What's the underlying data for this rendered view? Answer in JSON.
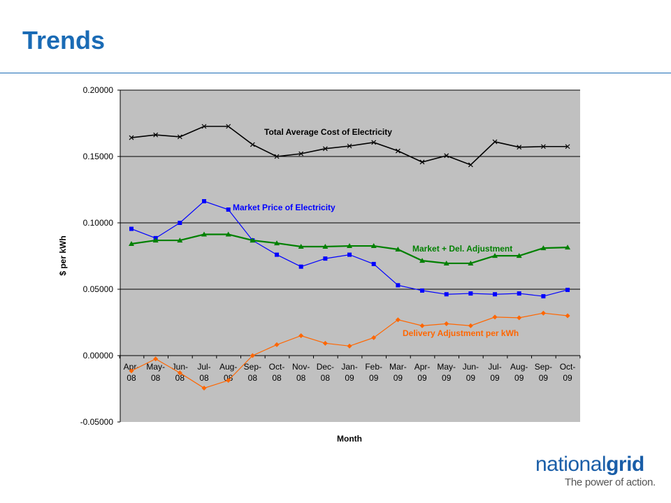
{
  "slide": {
    "title": "Trends"
  },
  "logo": {
    "name_regular": "national",
    "name_bold": "grid",
    "tagline": "The power of action."
  },
  "chart_data": {
    "type": "line",
    "xlabel": "Month",
    "ylabel": "$ per kWh",
    "ylim": [
      -0.05,
      0.2
    ],
    "yticks": [
      "0.20000",
      "0.15000",
      "0.10000",
      "0.05000",
      "0.00000",
      "-0.05000"
    ],
    "ytick_values": [
      0.2,
      0.15,
      0.1,
      0.05,
      0.0,
      -0.05
    ],
    "grid": true,
    "plot_background": "#c0c0c0",
    "categories": [
      "Apr-08",
      "May-08",
      "Jun-08",
      "Jul-08",
      "Aug-08",
      "Sep-08",
      "Oct-08",
      "Nov-08",
      "Dec-08",
      "Jan-09",
      "Feb-09",
      "Mar-09",
      "Apr-09",
      "May-09",
      "Jun-09",
      "Jul-09",
      "Aug-09",
      "Sep-09",
      "Oct-09"
    ],
    "category_labels": [
      [
        "Apr-",
        "08"
      ],
      [
        "May-",
        "08"
      ],
      [
        "Jun-",
        "08"
      ],
      [
        "Jul-",
        "08"
      ],
      [
        "Aug-",
        "08"
      ],
      [
        "Sep-",
        "08"
      ],
      [
        "Oct-",
        "08"
      ],
      [
        "Nov-",
        "08"
      ],
      [
        "Dec-",
        "08"
      ],
      [
        "Jan-",
        "09"
      ],
      [
        "Feb-",
        "09"
      ],
      [
        "Mar-",
        "09"
      ],
      [
        "Apr-",
        "09"
      ],
      [
        "May-",
        "09"
      ],
      [
        "Jun-",
        "09"
      ],
      [
        "Jul-",
        "09"
      ],
      [
        "Aug-",
        "09"
      ],
      [
        "Sep-",
        "09"
      ],
      [
        "Oct-",
        "09"
      ]
    ],
    "series": [
      {
        "name": "Total Average Cost of Electricity",
        "color": "#000000",
        "marker": "x",
        "values": [
          0.1642,
          0.1663,
          0.1648,
          0.1727,
          0.1727,
          0.159,
          0.15,
          0.1521,
          0.1559,
          0.1579,
          0.1606,
          0.1542,
          0.1458,
          0.1506,
          0.1437,
          0.1611,
          0.157,
          0.1575,
          0.1575
        ]
      },
      {
        "name": "Market Price of Electricity",
        "color": "#0000ff",
        "marker": "square",
        "values": [
          0.0955,
          0.0885,
          0.1,
          0.1163,
          0.11,
          0.0868,
          0.076,
          0.067,
          0.0731,
          0.076,
          0.069,
          0.053,
          0.049,
          0.0462,
          0.0468,
          0.0462,
          0.0468,
          0.0447,
          0.0495
        ]
      },
      {
        "name": "Market + Del. Adjustment",
        "color": "#008000",
        "marker": "triangle",
        "values": [
          0.0842,
          0.0868,
          0.0868,
          0.0913,
          0.0913,
          0.0868,
          0.0847,
          0.0821,
          0.0821,
          0.0826,
          0.0826,
          0.08,
          0.0715,
          0.0695,
          0.0695,
          0.0752,
          0.0752,
          0.081,
          0.0815
        ]
      },
      {
        "name": "Delivery Adjustment per kWh",
        "color": "#ff6600",
        "marker": "diamond",
        "values": [
          -0.0115,
          -0.0025,
          -0.013,
          -0.0245,
          -0.0187,
          0.0,
          0.0082,
          0.015,
          0.0093,
          0.0072,
          0.0135,
          0.027,
          0.0225,
          0.024,
          0.0225,
          0.029,
          0.0285,
          0.032,
          0.03
        ]
      }
    ]
  }
}
